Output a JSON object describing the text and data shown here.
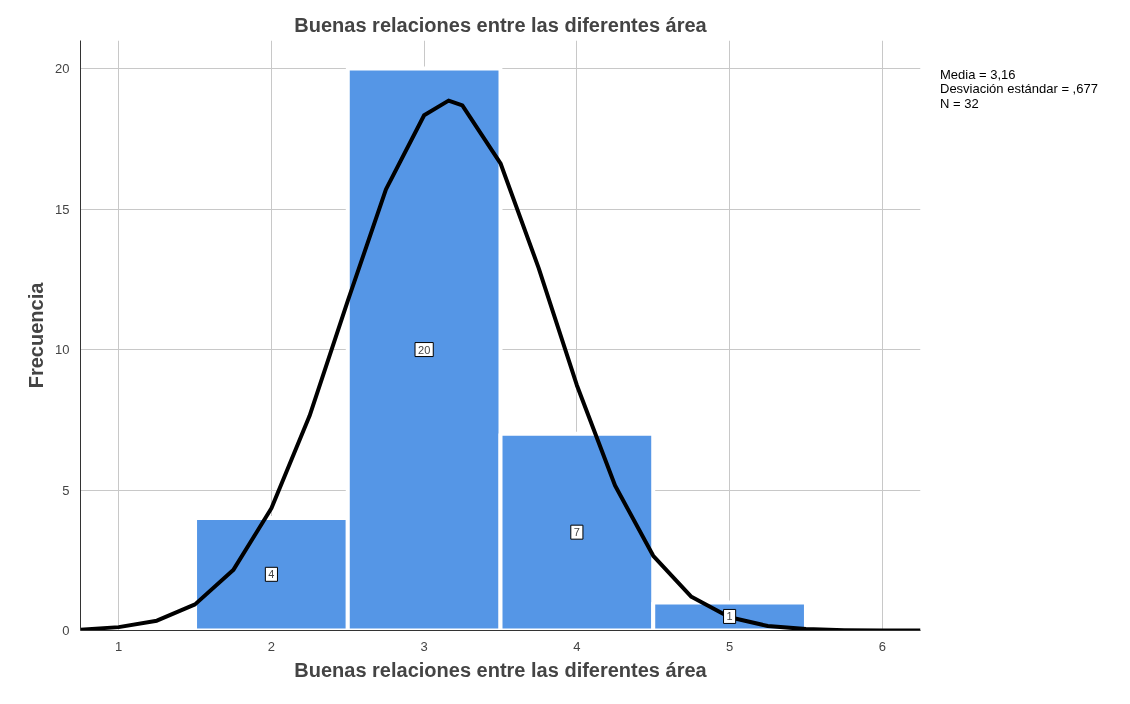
{
  "chart_data": {
    "type": "histogram",
    "title": "Buenas relaciones entre las diferentes área",
    "xlabel": "Buenas relaciones entre las diferentes área",
    "ylabel": "Frecuencia",
    "bins": [
      1.5,
      2.5,
      3.5,
      4.5,
      5.5
    ],
    "values": [
      4,
      20,
      7,
      1
    ],
    "color": "#5596e6",
    "value_labels": [
      "4",
      "20",
      "7",
      "1"
    ],
    "series": [
      {
        "type": "line",
        "color": "#000000",
        "x": [
          0.75,
          1.0,
          1.25,
          1.5,
          1.75,
          2.0,
          2.25,
          2.5,
          2.75,
          3.0,
          3.16,
          3.25,
          3.5,
          3.75,
          4.0,
          4.25,
          4.5,
          4.75,
          5.0,
          5.25,
          5.5,
          5.75,
          6.0,
          6.25
        ],
        "values": [
          0.03,
          0.12,
          0.35,
          0.93,
          2.15,
          4.35,
          7.64,
          11.73,
          15.7,
          18.34,
          18.86,
          18.69,
          16.63,
          12.9,
          8.73,
          5.16,
          2.66,
          1.2,
          0.47,
          0.16,
          0.05,
          0.01,
          0.0,
          0.0
        ]
      }
    ],
    "xlim": [
      0.75,
      6.25
    ],
    "xticks": [
      1,
      2,
      3,
      4,
      5,
      6
    ],
    "ylim": [
      0,
      21
    ],
    "yticks": [
      0,
      5,
      10,
      15,
      20
    ],
    "grid": true,
    "annotations": [
      "Media = 3,16",
      "Desviación estándar = ,677",
      "N = 32"
    ]
  }
}
